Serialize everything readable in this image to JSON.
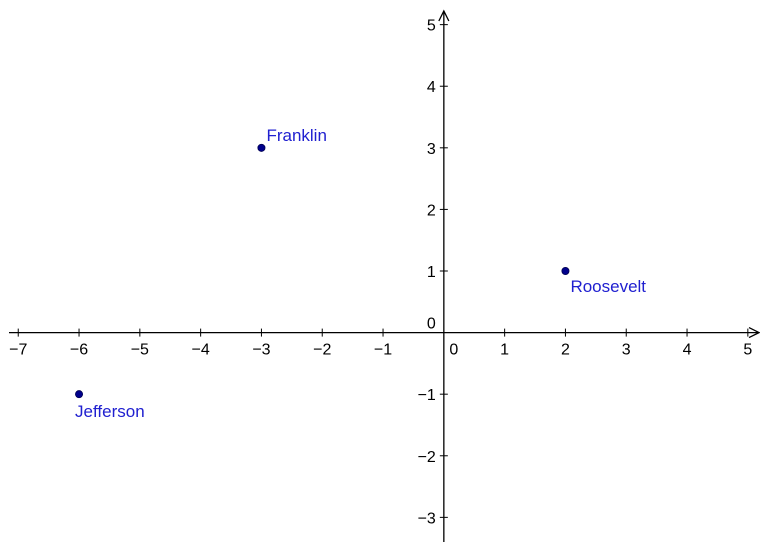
{
  "chart_data": {
    "type": "scatter",
    "xlim": [
      -7.3,
      5.2
    ],
    "ylim": [
      -3.4,
      5.4
    ],
    "x_ticks": [
      -7,
      -6,
      -5,
      -4,
      -3,
      -2,
      -1,
      0,
      1,
      2,
      3,
      4,
      5
    ],
    "y_ticks": [
      -3,
      -2,
      -1,
      0,
      1,
      2,
      3,
      4,
      5
    ],
    "grid": false,
    "points": [
      {
        "label": "Franklin",
        "x": -3,
        "y": 3,
        "label_position": "above-right"
      },
      {
        "label": "Roosevelt",
        "x": 2,
        "y": 1,
        "label_position": "below-right"
      },
      {
        "label": "Jefferson",
        "x": -6,
        "y": -1,
        "label_position": "below"
      }
    ],
    "colors": {
      "point": "#00008b",
      "label": "#2020d0",
      "axis": "#000000"
    }
  }
}
